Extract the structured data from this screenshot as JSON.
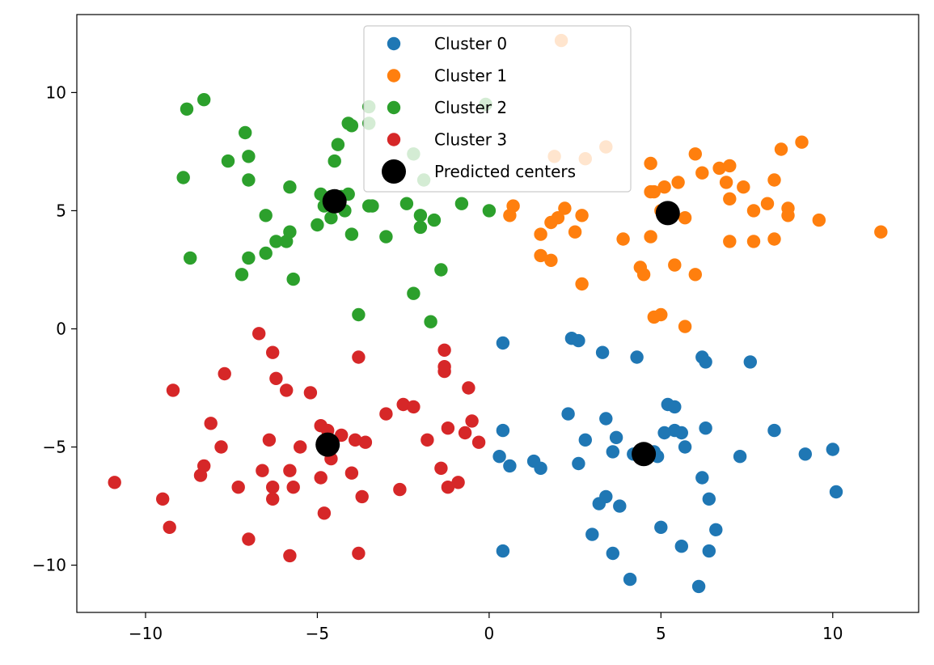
{
  "chart_data": {
    "type": "scatter",
    "title": "",
    "xlabel": "",
    "ylabel": "",
    "xlim": [
      -12.0,
      12.5
    ],
    "ylim": [
      -12.0,
      13.3
    ],
    "x_ticks": [
      -10,
      -5,
      0,
      5,
      10
    ],
    "x_tick_labels": [
      "−10",
      "−5",
      "0",
      "5",
      "10"
    ],
    "y_ticks": [
      -10,
      -5,
      0,
      5,
      10
    ],
    "y_tick_labels": [
      "−10",
      "−5",
      "0",
      "5",
      "10"
    ],
    "grid": false,
    "legend_position": "top-center",
    "series": [
      {
        "name": "Cluster 0",
        "color": "#1f77b4",
        "points": [
          [
            0.4,
            -0.6
          ],
          [
            2.4,
            -0.4
          ],
          [
            2.6,
            -0.5
          ],
          [
            3.3,
            -1.0
          ],
          [
            4.3,
            -1.2
          ],
          [
            6.2,
            -1.2
          ],
          [
            6.3,
            -1.4
          ],
          [
            7.6,
            -1.4
          ],
          [
            2.3,
            -3.6
          ],
          [
            3.4,
            -3.8
          ],
          [
            5.2,
            -3.2
          ],
          [
            5.4,
            -3.3
          ],
          [
            0.4,
            -4.3
          ],
          [
            2.8,
            -4.7
          ],
          [
            3.7,
            -4.6
          ],
          [
            5.4,
            -4.3
          ],
          [
            5.6,
            -4.4
          ],
          [
            5.1,
            -4.4
          ],
          [
            6.3,
            -4.2
          ],
          [
            8.3,
            -4.3
          ],
          [
            3.6,
            -5.2
          ],
          [
            4.2,
            -5.3
          ],
          [
            4.8,
            -5.2
          ],
          [
            4.9,
            -5.4
          ],
          [
            5.7,
            -5.0
          ],
          [
            7.3,
            -5.4
          ],
          [
            0.3,
            -5.4
          ],
          [
            0.6,
            -5.8
          ],
          [
            1.3,
            -5.6
          ],
          [
            1.5,
            -5.9
          ],
          [
            2.6,
            -5.7
          ],
          [
            9.2,
            -5.3
          ],
          [
            10.0,
            -5.1
          ],
          [
            6.2,
            -6.3
          ],
          [
            10.1,
            -6.9
          ],
          [
            6.4,
            -7.2
          ],
          [
            3.2,
            -7.4
          ],
          [
            3.4,
            -7.1
          ],
          [
            3.8,
            -7.5
          ],
          [
            5.0,
            -8.4
          ],
          [
            6.6,
            -8.5
          ],
          [
            3.0,
            -8.7
          ],
          [
            5.6,
            -9.2
          ],
          [
            6.4,
            -9.4
          ],
          [
            0.4,
            -9.4
          ],
          [
            3.6,
            -9.5
          ],
          [
            4.1,
            -10.6
          ],
          [
            6.1,
            -10.9
          ]
        ]
      },
      {
        "name": "Cluster 1",
        "color": "#ff7f0e",
        "points": [
          [
            2.1,
            12.2
          ],
          [
            1.9,
            7.3
          ],
          [
            2.8,
            7.2
          ],
          [
            3.4,
            7.7
          ],
          [
            4.7,
            7.0
          ],
          [
            6.0,
            7.4
          ],
          [
            6.7,
            6.8
          ],
          [
            7.0,
            6.9
          ],
          [
            8.5,
            7.6
          ],
          [
            9.1,
            7.9
          ],
          [
            5.1,
            6.0
          ],
          [
            5.5,
            6.2
          ],
          [
            6.2,
            6.6
          ],
          [
            6.9,
            6.2
          ],
          [
            7.4,
            6.0
          ],
          [
            8.3,
            6.3
          ],
          [
            4.7,
            5.8
          ],
          [
            4.8,
            5.8
          ],
          [
            0.7,
            5.2
          ],
          [
            0.6,
            4.8
          ],
          [
            2.2,
            5.1
          ],
          [
            2.0,
            4.7
          ],
          [
            1.8,
            4.5
          ],
          [
            2.7,
            4.8
          ],
          [
            5.0,
            5.0
          ],
          [
            5.7,
            4.7
          ],
          [
            7.0,
            5.5
          ],
          [
            7.7,
            5.0
          ],
          [
            8.1,
            5.3
          ],
          [
            8.7,
            5.1
          ],
          [
            8.7,
            4.8
          ],
          [
            9.6,
            4.6
          ],
          [
            1.5,
            4.0
          ],
          [
            2.5,
            4.1
          ],
          [
            3.9,
            3.8
          ],
          [
            4.7,
            3.9
          ],
          [
            7.0,
            3.7
          ],
          [
            7.7,
            3.7
          ],
          [
            8.3,
            3.8
          ],
          [
            11.4,
            4.1
          ],
          [
            1.5,
            3.1
          ],
          [
            1.8,
            2.9
          ],
          [
            4.4,
            2.6
          ],
          [
            5.4,
            2.7
          ],
          [
            4.5,
            2.3
          ],
          [
            6.0,
            2.3
          ],
          [
            2.7,
            1.9
          ],
          [
            4.8,
            0.5
          ],
          [
            5.0,
            0.6
          ],
          [
            5.7,
            0.1
          ]
        ]
      },
      {
        "name": "Cluster 2",
        "color": "#2ca02c",
        "points": [
          [
            -8.3,
            9.7
          ],
          [
            -8.8,
            9.3
          ],
          [
            -3.5,
            9.4
          ],
          [
            -0.1,
            9.5
          ],
          [
            -4.1,
            8.7
          ],
          [
            -4.0,
            8.6
          ],
          [
            -3.5,
            8.7
          ],
          [
            -7.1,
            8.3
          ],
          [
            -4.4,
            7.8
          ],
          [
            -7.6,
            7.1
          ],
          [
            -7.0,
            7.3
          ],
          [
            -4.5,
            7.1
          ],
          [
            -2.2,
            7.4
          ],
          [
            -8.9,
            6.4
          ],
          [
            -7.0,
            6.3
          ],
          [
            -1.9,
            6.3
          ],
          [
            -5.8,
            6.0
          ],
          [
            -4.9,
            5.7
          ],
          [
            -4.6,
            5.6
          ],
          [
            -4.3,
            5.6
          ],
          [
            -4.1,
            5.7
          ],
          [
            -4.4,
            5.2
          ],
          [
            -4.8,
            5.2
          ],
          [
            -4.6,
            4.7
          ],
          [
            -4.2,
            5.0
          ],
          [
            -3.5,
            5.2
          ],
          [
            -3.4,
            5.2
          ],
          [
            -2.4,
            5.3
          ],
          [
            -0.8,
            5.3
          ],
          [
            0.0,
            5.0
          ],
          [
            -6.5,
            4.8
          ],
          [
            -2.0,
            4.8
          ],
          [
            -1.6,
            4.6
          ],
          [
            -2.0,
            4.3
          ],
          [
            -5.0,
            4.4
          ],
          [
            -5.8,
            4.1
          ],
          [
            -4.0,
            4.0
          ],
          [
            -3.0,
            3.9
          ],
          [
            -6.2,
            3.7
          ],
          [
            -5.9,
            3.7
          ],
          [
            -6.5,
            3.2
          ],
          [
            -8.7,
            3.0
          ],
          [
            -7.0,
            3.0
          ],
          [
            -7.2,
            2.3
          ],
          [
            -5.7,
            2.1
          ],
          [
            -1.4,
            2.5
          ],
          [
            -2.2,
            1.5
          ],
          [
            -3.8,
            0.6
          ],
          [
            -1.7,
            0.3
          ]
        ]
      },
      {
        "name": "Cluster 3",
        "color": "#d62728",
        "points": [
          [
            -6.7,
            -0.2
          ],
          [
            -6.3,
            -1.0
          ],
          [
            -3.8,
            -1.2
          ],
          [
            -1.3,
            -0.9
          ],
          [
            -1.3,
            -1.6
          ],
          [
            -1.3,
            -1.8
          ],
          [
            -7.7,
            -1.9
          ],
          [
            -6.2,
            -2.1
          ],
          [
            -5.9,
            -2.6
          ],
          [
            -5.2,
            -2.7
          ],
          [
            -9.2,
            -2.6
          ],
          [
            -0.6,
            -2.5
          ],
          [
            -2.5,
            -3.2
          ],
          [
            -2.2,
            -3.3
          ],
          [
            -3.0,
            -3.6
          ],
          [
            -8.1,
            -4.0
          ],
          [
            -4.9,
            -4.1
          ],
          [
            -4.7,
            -4.3
          ],
          [
            -4.3,
            -4.5
          ],
          [
            -1.2,
            -4.2
          ],
          [
            -0.5,
            -3.9
          ],
          [
            -0.7,
            -4.4
          ],
          [
            -6.4,
            -4.7
          ],
          [
            -3.9,
            -4.7
          ],
          [
            -3.6,
            -4.8
          ],
          [
            -1.8,
            -4.7
          ],
          [
            -0.3,
            -4.8
          ],
          [
            -7.8,
            -5.0
          ],
          [
            -5.5,
            -5.0
          ],
          [
            -4.6,
            -5.5
          ],
          [
            -8.3,
            -5.8
          ],
          [
            -8.4,
            -6.2
          ],
          [
            -6.6,
            -6.0
          ],
          [
            -5.8,
            -6.0
          ],
          [
            -4.9,
            -6.3
          ],
          [
            -4.0,
            -6.1
          ],
          [
            -1.4,
            -5.9
          ],
          [
            -10.9,
            -6.5
          ],
          [
            -7.3,
            -6.7
          ],
          [
            -6.3,
            -6.7
          ],
          [
            -5.7,
            -6.7
          ],
          [
            -2.6,
            -6.8
          ],
          [
            -0.9,
            -6.5
          ],
          [
            -1.2,
            -6.7
          ],
          [
            -9.5,
            -7.2
          ],
          [
            -6.3,
            -7.2
          ],
          [
            -3.7,
            -7.1
          ],
          [
            -4.8,
            -7.8
          ],
          [
            -9.3,
            -8.4
          ],
          [
            -7.0,
            -8.9
          ],
          [
            -5.8,
            -9.6
          ],
          [
            -3.8,
            -9.5
          ]
        ]
      }
    ],
    "centers": {
      "name": "Predicted centers",
      "color": "#000000",
      "points": [
        [
          -4.5,
          5.4
        ],
        [
          5.2,
          4.9
        ],
        [
          -4.7,
          -4.9
        ],
        [
          4.5,
          -5.3
        ]
      ]
    }
  }
}
